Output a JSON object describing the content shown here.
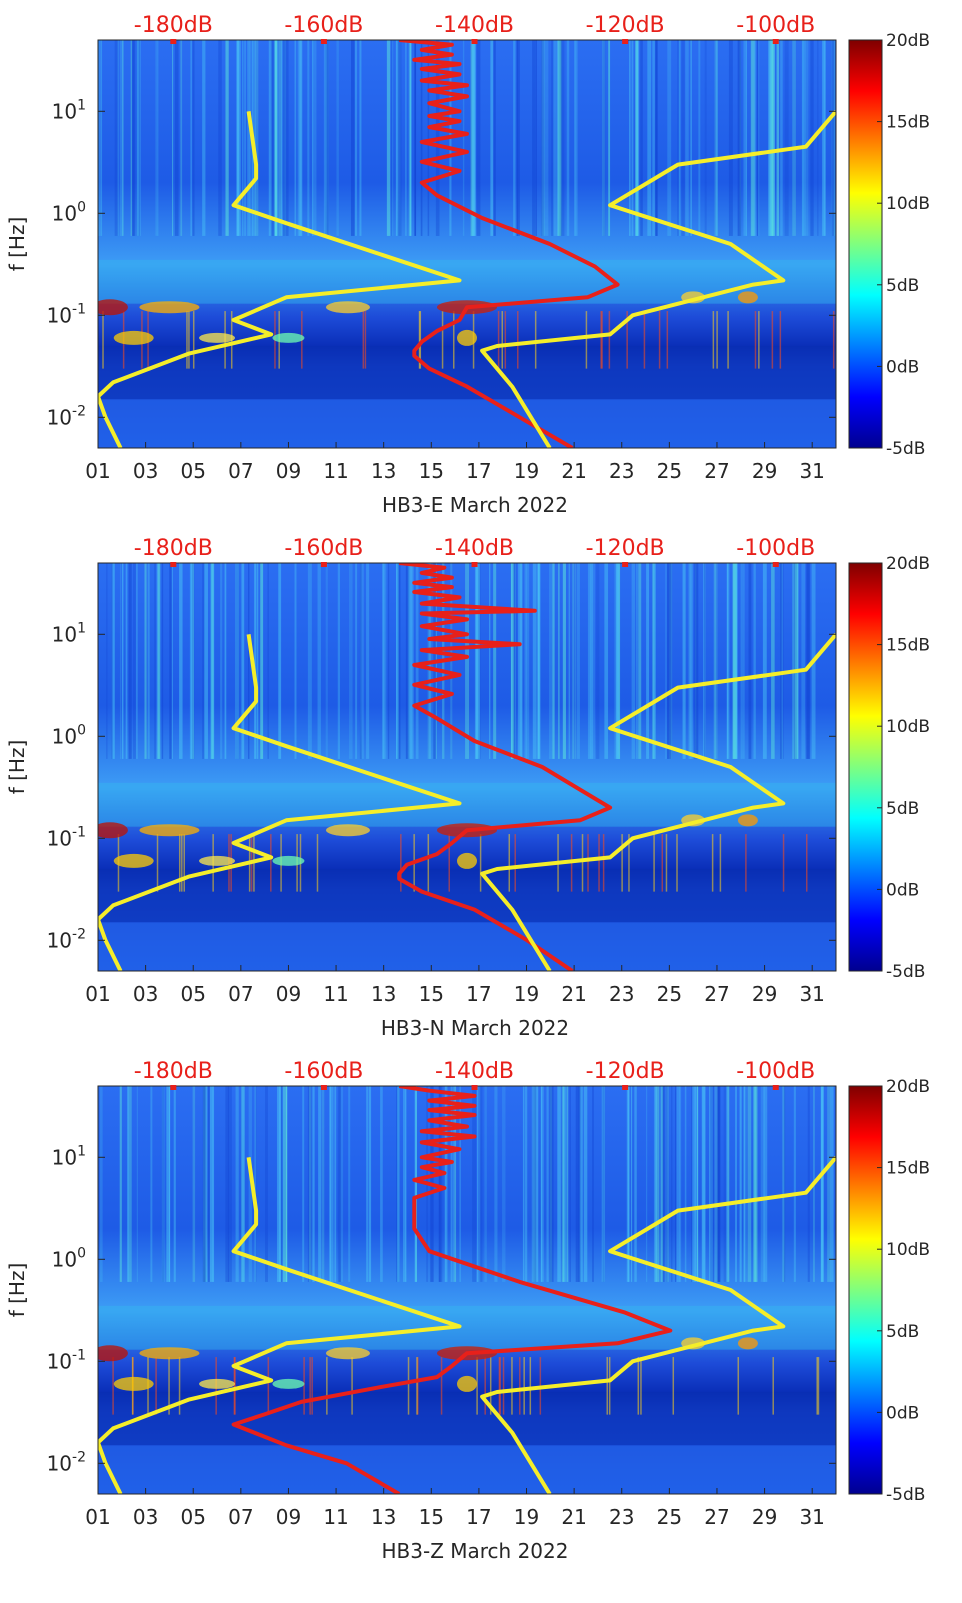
{
  "chart_data": [
    {
      "type": "heatmap",
      "xlabel": "HB3-E March 2022",
      "ylabel": "f [Hz]",
      "x_ticks": [
        "01",
        "03",
        "05",
        "07",
        "09",
        "11",
        "13",
        "15",
        "17",
        "19",
        "21",
        "23",
        "25",
        "27",
        "29",
        "31"
      ],
      "x_range": [
        1,
        32
      ],
      "y_scale": "log",
      "y_range": [
        0.005,
        50
      ],
      "y_ticks": [
        {
          "v": 0.01,
          "b": "10",
          "e": "-2"
        },
        {
          "v": 0.1,
          "b": "10",
          "e": "-1"
        },
        {
          "v": 1,
          "b": "10",
          "e": "0"
        },
        {
          "v": 10,
          "b": "10",
          "e": "1"
        }
      ],
      "top_axis_labels": [
        "-180dB",
        "-160dB",
        "-140dB",
        "-120dB",
        "-100dB"
      ],
      "top_axis_db": [
        -180,
        -160,
        -140,
        -120,
        -100
      ],
      "top_axis_range_db": [
        -190,
        -92
      ],
      "colorbar": {
        "labels": [
          "20dB",
          "15dB",
          "10dB",
          "5dB",
          "0dB",
          "-5dB"
        ],
        "range": [
          -5,
          20
        ]
      },
      "series": [
        {
          "name": "red power spectrum (top dB axis)",
          "color": "#e8201a",
          "x_unit": "dB",
          "points": [
            [
              -150,
              50
            ],
            [
              -143,
              45
            ],
            [
              -147,
              40
            ],
            [
              -143,
              36
            ],
            [
              -148,
              32
            ],
            [
              -142,
              29
            ],
            [
              -147,
              26
            ],
            [
              -142,
              23
            ],
            [
              -147,
              20
            ],
            [
              -141,
              18
            ],
            [
              -146,
              16
            ],
            [
              -141,
              14
            ],
            [
              -146,
              12
            ],
            [
              -142,
              10
            ],
            [
              -146,
              9
            ],
            [
              -142,
              8
            ],
            [
              -146,
              7
            ],
            [
              -141,
              6
            ],
            [
              -147,
              5
            ],
            [
              -141,
              4
            ],
            [
              -147,
              3.2
            ],
            [
              -142,
              2.6
            ],
            [
              -147,
              2
            ],
            [
              -145,
              1.5
            ],
            [
              -139,
              0.9
            ],
            [
              -130,
              0.5
            ],
            [
              -124,
              0.3
            ],
            [
              -121,
              0.2
            ],
            [
              -125,
              0.15
            ],
            [
              -141,
              0.12
            ],
            [
              -142,
              0.09
            ],
            [
              -145,
              0.07
            ],
            [
              -147,
              0.055
            ],
            [
              -148,
              0.045
            ],
            [
              -148,
              0.04
            ],
            [
              -146,
              0.03
            ],
            [
              -141,
              0.02
            ],
            [
              -134,
              0.01
            ],
            [
              -127,
              0.005
            ]
          ]
        },
        {
          "name": "low noise model (top dB axis)",
          "color": "#f5ee2a",
          "x_unit": "dB",
          "points": [
            [
              -170,
              10
            ],
            [
              -169,
              3
            ],
            [
              -169,
              2.2
            ],
            [
              -172,
              1.2
            ],
            [
              -165,
              0.8
            ],
            [
              -142,
              0.22
            ],
            [
              -165,
              0.15
            ],
            [
              -172,
              0.09
            ],
            [
              -167,
              0.065
            ],
            [
              -178,
              0.042
            ],
            [
              -188,
              0.022
            ],
            [
              -190,
              0.016
            ],
            [
              -189,
              0.01
            ],
            [
              -187,
              0.005
            ]
          ]
        },
        {
          "name": "high noise model (top dB axis)",
          "color": "#f5ee2a",
          "x_unit": "dB",
          "points": [
            [
              -92,
              10
            ],
            [
              -96,
              4.5
            ],
            [
              -113,
              3
            ],
            [
              -122,
              1.2
            ],
            [
              -106,
              0.5
            ],
            [
              -99,
              0.22
            ],
            [
              -103,
              0.2
            ],
            [
              -119,
              0.1
            ],
            [
              -122,
              0.065
            ],
            [
              -137,
              0.05
            ],
            [
              -139,
              0.045
            ],
            [
              -135,
              0.02
            ],
            [
              -130,
              0.005
            ]
          ]
        }
      ]
    },
    {
      "type": "heatmap",
      "xlabel": "HB3-N March 2022",
      "ylabel": "f [Hz]",
      "x_ticks": [
        "01",
        "03",
        "05",
        "07",
        "09",
        "11",
        "13",
        "15",
        "17",
        "19",
        "21",
        "23",
        "25",
        "27",
        "29",
        "31"
      ],
      "x_range": [
        1,
        32
      ],
      "y_scale": "log",
      "y_range": [
        0.005,
        50
      ],
      "y_ticks": [
        {
          "v": 0.01,
          "b": "10",
          "e": "-2"
        },
        {
          "v": 0.1,
          "b": "10",
          "e": "-1"
        },
        {
          "v": 1,
          "b": "10",
          "e": "0"
        },
        {
          "v": 10,
          "b": "10",
          "e": "1"
        }
      ],
      "top_axis_labels": [
        "-180dB",
        "-160dB",
        "-140dB",
        "-120dB",
        "-100dB"
      ],
      "top_axis_db": [
        -180,
        -160,
        -140,
        -120,
        -100
      ],
      "top_axis_range_db": [
        -190,
        -92
      ],
      "colorbar": {
        "labels": [
          "20dB",
          "15dB",
          "10dB",
          "5dB",
          "0dB",
          "-5dB"
        ],
        "range": [
          -5,
          20
        ]
      },
      "series": [
        {
          "name": "red power spectrum (top dB axis)",
          "color": "#e8201a",
          "x_unit": "dB",
          "points": [
            [
              -150,
              50
            ],
            [
              -144,
              45
            ],
            [
              -147,
              40
            ],
            [
              -143,
              36
            ],
            [
              -148,
              32
            ],
            [
              -143,
              29
            ],
            [
              -148,
              26
            ],
            [
              -142,
              23
            ],
            [
              -147,
              20
            ],
            [
              -132,
              17
            ],
            [
              -147,
              16
            ],
            [
              -141,
              14
            ],
            [
              -147,
              12
            ],
            [
              -141,
              10
            ],
            [
              -146,
              9
            ],
            [
              -134,
              8
            ],
            [
              -147,
              7
            ],
            [
              -141,
              6
            ],
            [
              -148,
              5
            ],
            [
              -142,
              4
            ],
            [
              -148,
              3.2
            ],
            [
              -143,
              2.6
            ],
            [
              -148,
              2
            ],
            [
              -145,
              1.5
            ],
            [
              -140,
              0.9
            ],
            [
              -131,
              0.5
            ],
            [
              -126,
              0.3
            ],
            [
              -122,
              0.2
            ],
            [
              -126,
              0.15
            ],
            [
              -141,
              0.12
            ],
            [
              -143,
              0.09
            ],
            [
              -145,
              0.07
            ],
            [
              -149,
              0.055
            ],
            [
              -150,
              0.045
            ],
            [
              -150,
              0.04
            ],
            [
              -147,
              0.03
            ],
            [
              -140,
              0.02
            ],
            [
              -133,
              0.01
            ],
            [
              -127,
              0.005
            ]
          ]
        },
        {
          "name": "low noise model (top dB axis)",
          "color": "#f5ee2a",
          "x_unit": "dB",
          "points": [
            [
              -170,
              10
            ],
            [
              -169,
              3
            ],
            [
              -169,
              2.2
            ],
            [
              -172,
              1.2
            ],
            [
              -165,
              0.8
            ],
            [
              -142,
              0.22
            ],
            [
              -165,
              0.15
            ],
            [
              -172,
              0.09
            ],
            [
              -167,
              0.065
            ],
            [
              -178,
              0.042
            ],
            [
              -188,
              0.022
            ],
            [
              -190,
              0.016
            ],
            [
              -189,
              0.01
            ],
            [
              -187,
              0.005
            ]
          ]
        },
        {
          "name": "high noise model (top dB axis)",
          "color": "#f5ee2a",
          "x_unit": "dB",
          "points": [
            [
              -92,
              10
            ],
            [
              -96,
              4.5
            ],
            [
              -113,
              3
            ],
            [
              -122,
              1.2
            ],
            [
              -106,
              0.5
            ],
            [
              -99,
              0.22
            ],
            [
              -103,
              0.2
            ],
            [
              -119,
              0.1
            ],
            [
              -122,
              0.065
            ],
            [
              -137,
              0.05
            ],
            [
              -139,
              0.045
            ],
            [
              -135,
              0.02
            ],
            [
              -130,
              0.005
            ]
          ]
        }
      ]
    },
    {
      "type": "heatmap",
      "xlabel": "HB3-Z March 2022",
      "ylabel": "f [Hz]",
      "x_ticks": [
        "01",
        "03",
        "05",
        "07",
        "09",
        "11",
        "13",
        "15",
        "17",
        "19",
        "21",
        "23",
        "25",
        "27",
        "29",
        "31"
      ],
      "x_range": [
        1,
        32
      ],
      "y_scale": "log",
      "y_range": [
        0.005,
        50
      ],
      "y_ticks": [
        {
          "v": 0.01,
          "b": "10",
          "e": "-2"
        },
        {
          "v": 0.1,
          "b": "10",
          "e": "-1"
        },
        {
          "v": 1,
          "b": "10",
          "e": "0"
        },
        {
          "v": 10,
          "b": "10",
          "e": "1"
        }
      ],
      "top_axis_labels": [
        "-180dB",
        "-160dB",
        "-140dB",
        "-120dB",
        "-100dB"
      ],
      "top_axis_db": [
        -180,
        -160,
        -140,
        -120,
        -100
      ],
      "top_axis_range_db": [
        -190,
        -92
      ],
      "colorbar": {
        "labels": [
          "20dB",
          "15dB",
          "10dB",
          "5dB",
          "0dB",
          "-5dB"
        ],
        "range": [
          -5,
          20
        ]
      },
      "series": [
        {
          "name": "red power spectrum (top dB axis)",
          "color": "#e8201a",
          "x_unit": "dB",
          "points": [
            [
              -150,
              50
            ],
            [
              -146,
              45
            ],
            [
              -140,
              40
            ],
            [
              -146,
              36
            ],
            [
              -140,
              32
            ],
            [
              -146,
              29
            ],
            [
              -140,
              26
            ],
            [
              -146,
              23
            ],
            [
              -141,
              20
            ],
            [
              -147,
              18
            ],
            [
              -140,
              16
            ],
            [
              -147,
              14
            ],
            [
              -142,
              12
            ],
            [
              -147,
              10
            ],
            [
              -143,
              9
            ],
            [
              -147,
              8
            ],
            [
              -144,
              7
            ],
            [
              -148,
              6
            ],
            [
              -144,
              5
            ],
            [
              -148,
              4
            ],
            [
              -148,
              3
            ],
            [
              -148,
              2
            ],
            [
              -146,
              1.2
            ],
            [
              -134,
              0.6
            ],
            [
              -120,
              0.3
            ],
            [
              -114,
              0.2
            ],
            [
              -121,
              0.15
            ],
            [
              -141,
              0.12
            ],
            [
              -143,
              0.09
            ],
            [
              -145,
              0.07
            ],
            [
              -153,
              0.055
            ],
            [
              -163,
              0.04
            ],
            [
              -168,
              0.03
            ],
            [
              -172,
              0.024
            ],
            [
              -165,
              0.015
            ],
            [
              -157,
              0.01
            ],
            [
              -150,
              0.005
            ]
          ]
        },
        {
          "name": "low noise model (top dB axis)",
          "color": "#f5ee2a",
          "x_unit": "dB",
          "points": [
            [
              -170,
              10
            ],
            [
              -169,
              3
            ],
            [
              -169,
              2.2
            ],
            [
              -172,
              1.2
            ],
            [
              -165,
              0.8
            ],
            [
              -142,
              0.22
            ],
            [
              -165,
              0.15
            ],
            [
              -172,
              0.09
            ],
            [
              -167,
              0.065
            ],
            [
              -178,
              0.042
            ],
            [
              -188,
              0.022
            ],
            [
              -190,
              0.016
            ],
            [
              -189,
              0.01
            ],
            [
              -187,
              0.005
            ]
          ]
        },
        {
          "name": "high noise model (top dB axis)",
          "color": "#f5ee2a",
          "x_unit": "dB",
          "points": [
            [
              -92,
              10
            ],
            [
              -96,
              4.5
            ],
            [
              -113,
              3
            ],
            [
              -122,
              1.2
            ],
            [
              -106,
              0.5
            ],
            [
              -99,
              0.22
            ],
            [
              -103,
              0.2
            ],
            [
              -119,
              0.1
            ],
            [
              -122,
              0.065
            ],
            [
              -137,
              0.05
            ],
            [
              -139,
              0.045
            ],
            [
              -135,
              0.02
            ],
            [
              -130,
              0.005
            ]
          ]
        }
      ]
    }
  ],
  "colors": {
    "red_curve": "#e8201a",
    "model_curves": "#f5ee2a",
    "top_axis_text": "#e8201a",
    "axis_text": "#262626"
  }
}
